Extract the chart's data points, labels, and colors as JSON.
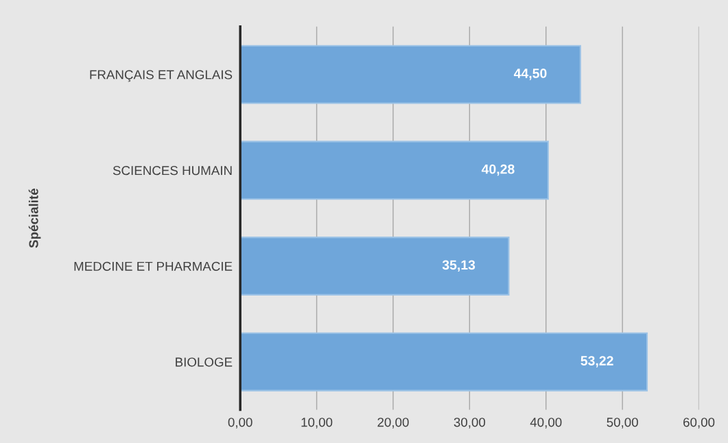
{
  "chart_data": {
    "type": "bar",
    "orientation": "horizontal",
    "ylabel": "Spécialité",
    "categories": [
      "FRANÇAIS ET ANGLAIS",
      "SCIENCES HUMAIN",
      "MEDCINE ET PHARMACIE",
      "BIOLOGE"
    ],
    "values": [
      44.5,
      40.28,
      35.13,
      53.22
    ],
    "value_labels": [
      "44,50",
      "40,28",
      "35,13",
      "53,22"
    ],
    "color": "#6fa6da",
    "xlim": [
      0,
      60
    ],
    "xticks": [
      {
        "value": 0,
        "label": "0,00"
      },
      {
        "value": 10,
        "label": "10,00"
      },
      {
        "value": 20,
        "label": "20,00"
      },
      {
        "value": 30,
        "label": "30,00"
      },
      {
        "value": 40,
        "label": "40,00"
      },
      {
        "value": 50,
        "label": "50,00"
      },
      {
        "value": 60,
        "label": "60,00"
      }
    ],
    "grid": "x",
    "legend": false
  }
}
